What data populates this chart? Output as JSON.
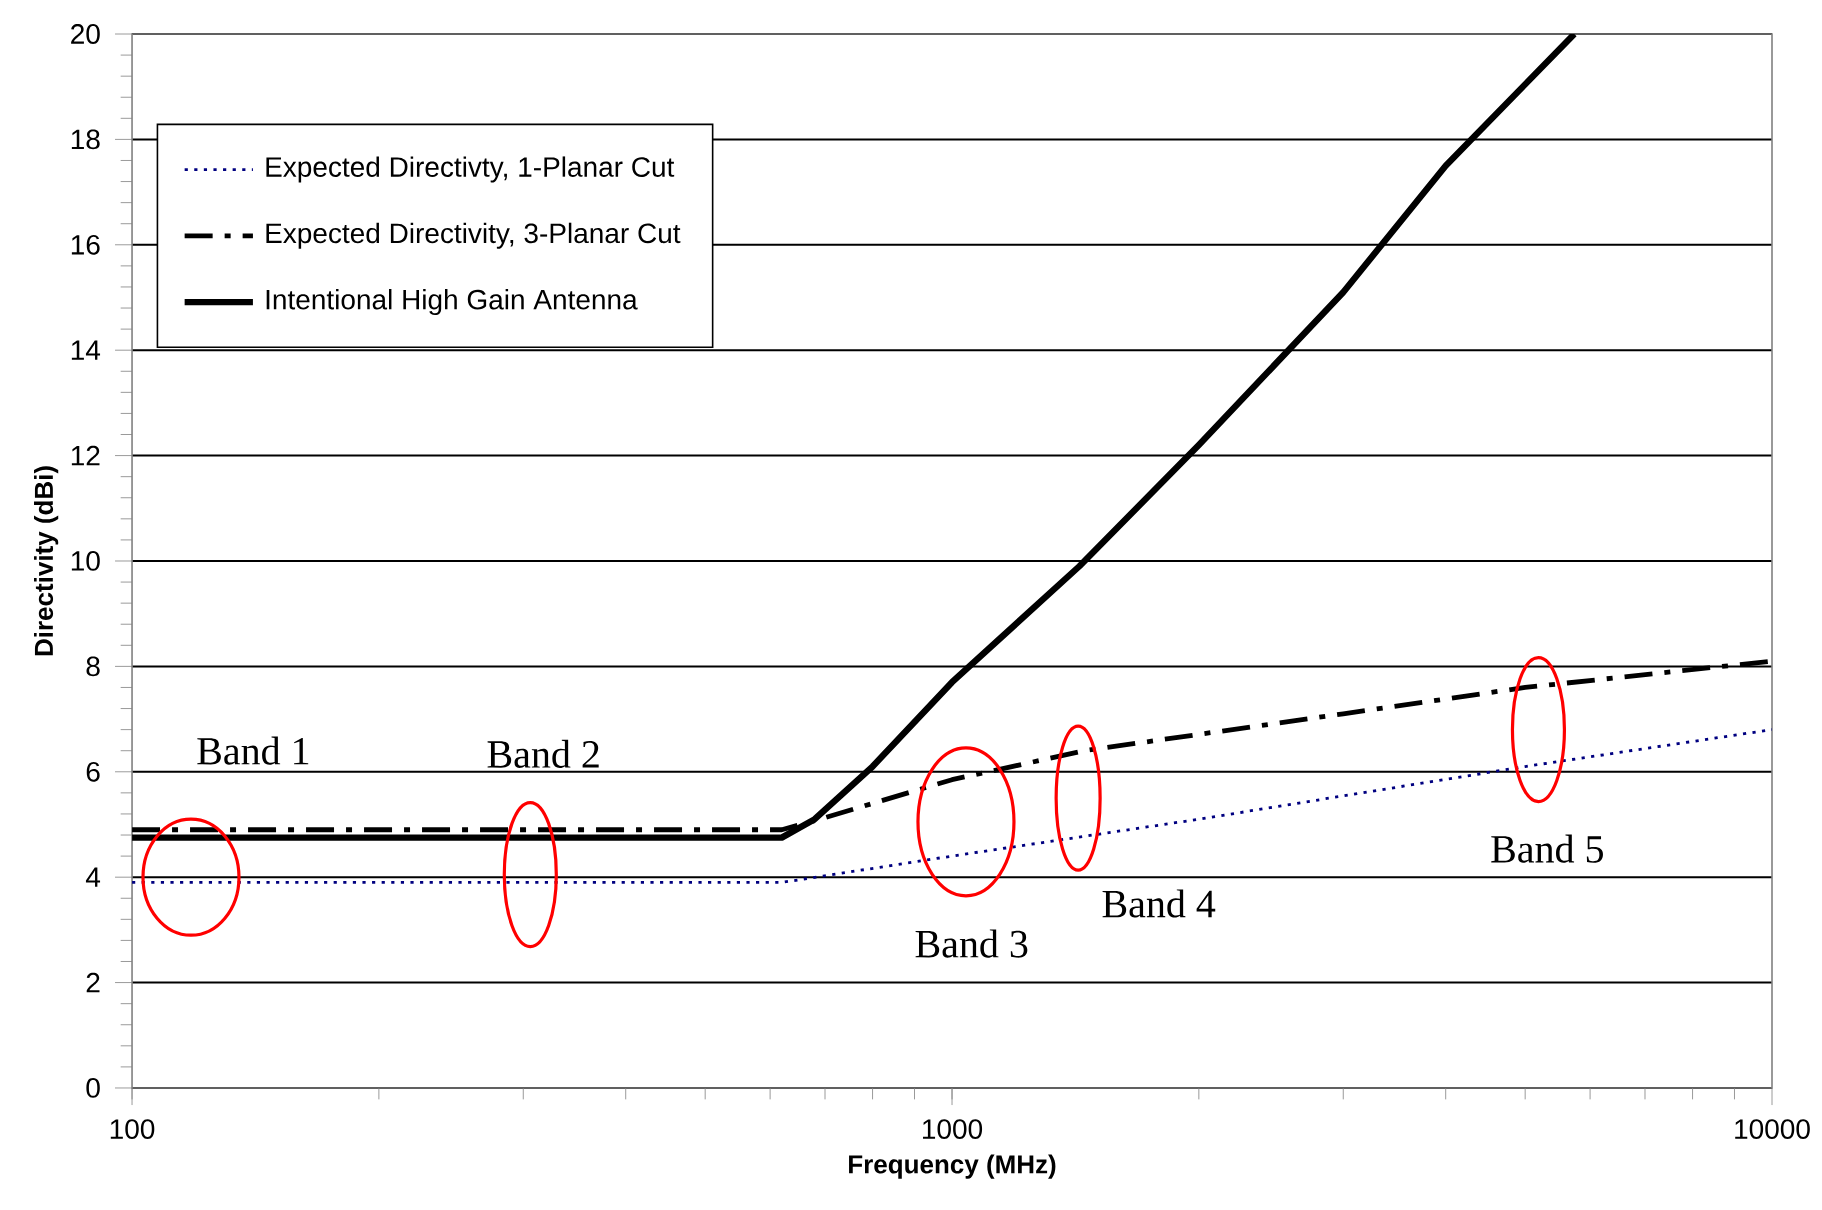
{
  "chart_data": {
    "type": "line",
    "xlabel": "Frequency (MHz)",
    "ylabel": "Directivity (dBi)",
    "log": "x",
    "xlim": [
      100,
      10000
    ],
    "xticks": [
      100,
      1000,
      10000
    ],
    "ylim": [
      0,
      20
    ],
    "yticks": [
      0,
      2,
      4,
      6,
      8,
      10,
      12,
      14,
      16,
      18,
      20
    ],
    "grid": "y",
    "legend": "top left",
    "series": [
      {
        "name": "Expected Directivty, 1-Planar Cut",
        "color": "#000080",
        "line_style": "dotted",
        "x": [
          100,
          620,
          1000,
          2000,
          5000,
          10000
        ],
        "values": [
          3.9,
          3.9,
          4.4,
          5.1,
          6.1,
          6.8
        ]
      },
      {
        "name": "Expected Directivity, 3-Planar Cut",
        "color": "#000000",
        "line_style": "dashed",
        "x": [
          100,
          620,
          690,
          1000,
          1450,
          3000,
          5000,
          10000
        ],
        "values": [
          4.9,
          4.9,
          5.1,
          5.85,
          6.4,
          7.1,
          7.6,
          8.1
        ]
      },
      {
        "name": "Intentional High Gain Antenna",
        "color": "#000000",
        "line_style": "solid",
        "x": [
          100,
          620,
          680,
          800,
          1000,
          1430,
          2000,
          3000,
          4000,
          5740
        ],
        "values": [
          4.75,
          4.75,
          5.1,
          6.1,
          7.7,
          9.9,
          12.2,
          15.1,
          17.5,
          20
        ]
      }
    ],
    "annotations": [
      "Band 1",
      "Band 2",
      "Band 3",
      "Band 4",
      "Band 5"
    ]
  }
}
